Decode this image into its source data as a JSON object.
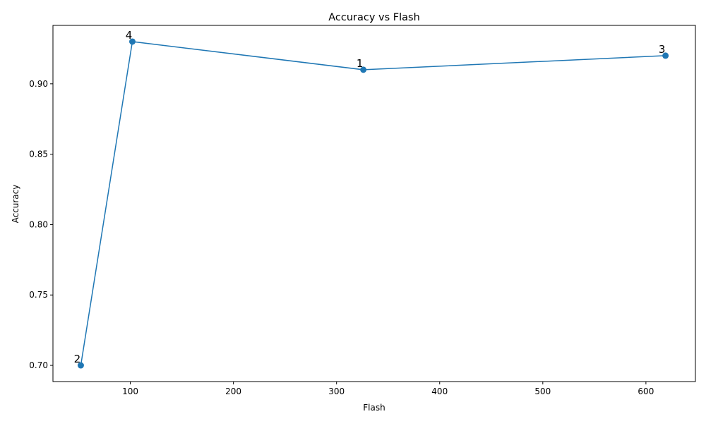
{
  "chart_data": {
    "type": "line",
    "title": "Accuracy vs Flash",
    "xlabel": "Flash",
    "ylabel": "Accuracy",
    "xlim": [
      25,
      648
    ],
    "ylim": [
      0.6885,
      0.9415
    ],
    "xticks": [
      100,
      200,
      300,
      400,
      500,
      600
    ],
    "yticks": [
      0.7,
      0.75,
      0.8,
      0.85,
      0.9
    ],
    "ytick_labels": [
      "0.70",
      "0.75",
      "0.80",
      "0.85",
      "0.90"
    ],
    "grid": false,
    "color": "#1f77b4",
    "series": [
      {
        "points": [
          {
            "x": 52,
            "y": 0.7,
            "label": "2"
          },
          {
            "x": 102,
            "y": 0.93,
            "label": "4"
          },
          {
            "x": 326,
            "y": 0.91,
            "label": "1"
          },
          {
            "x": 619,
            "y": 0.92,
            "label": "3"
          }
        ]
      }
    ]
  }
}
